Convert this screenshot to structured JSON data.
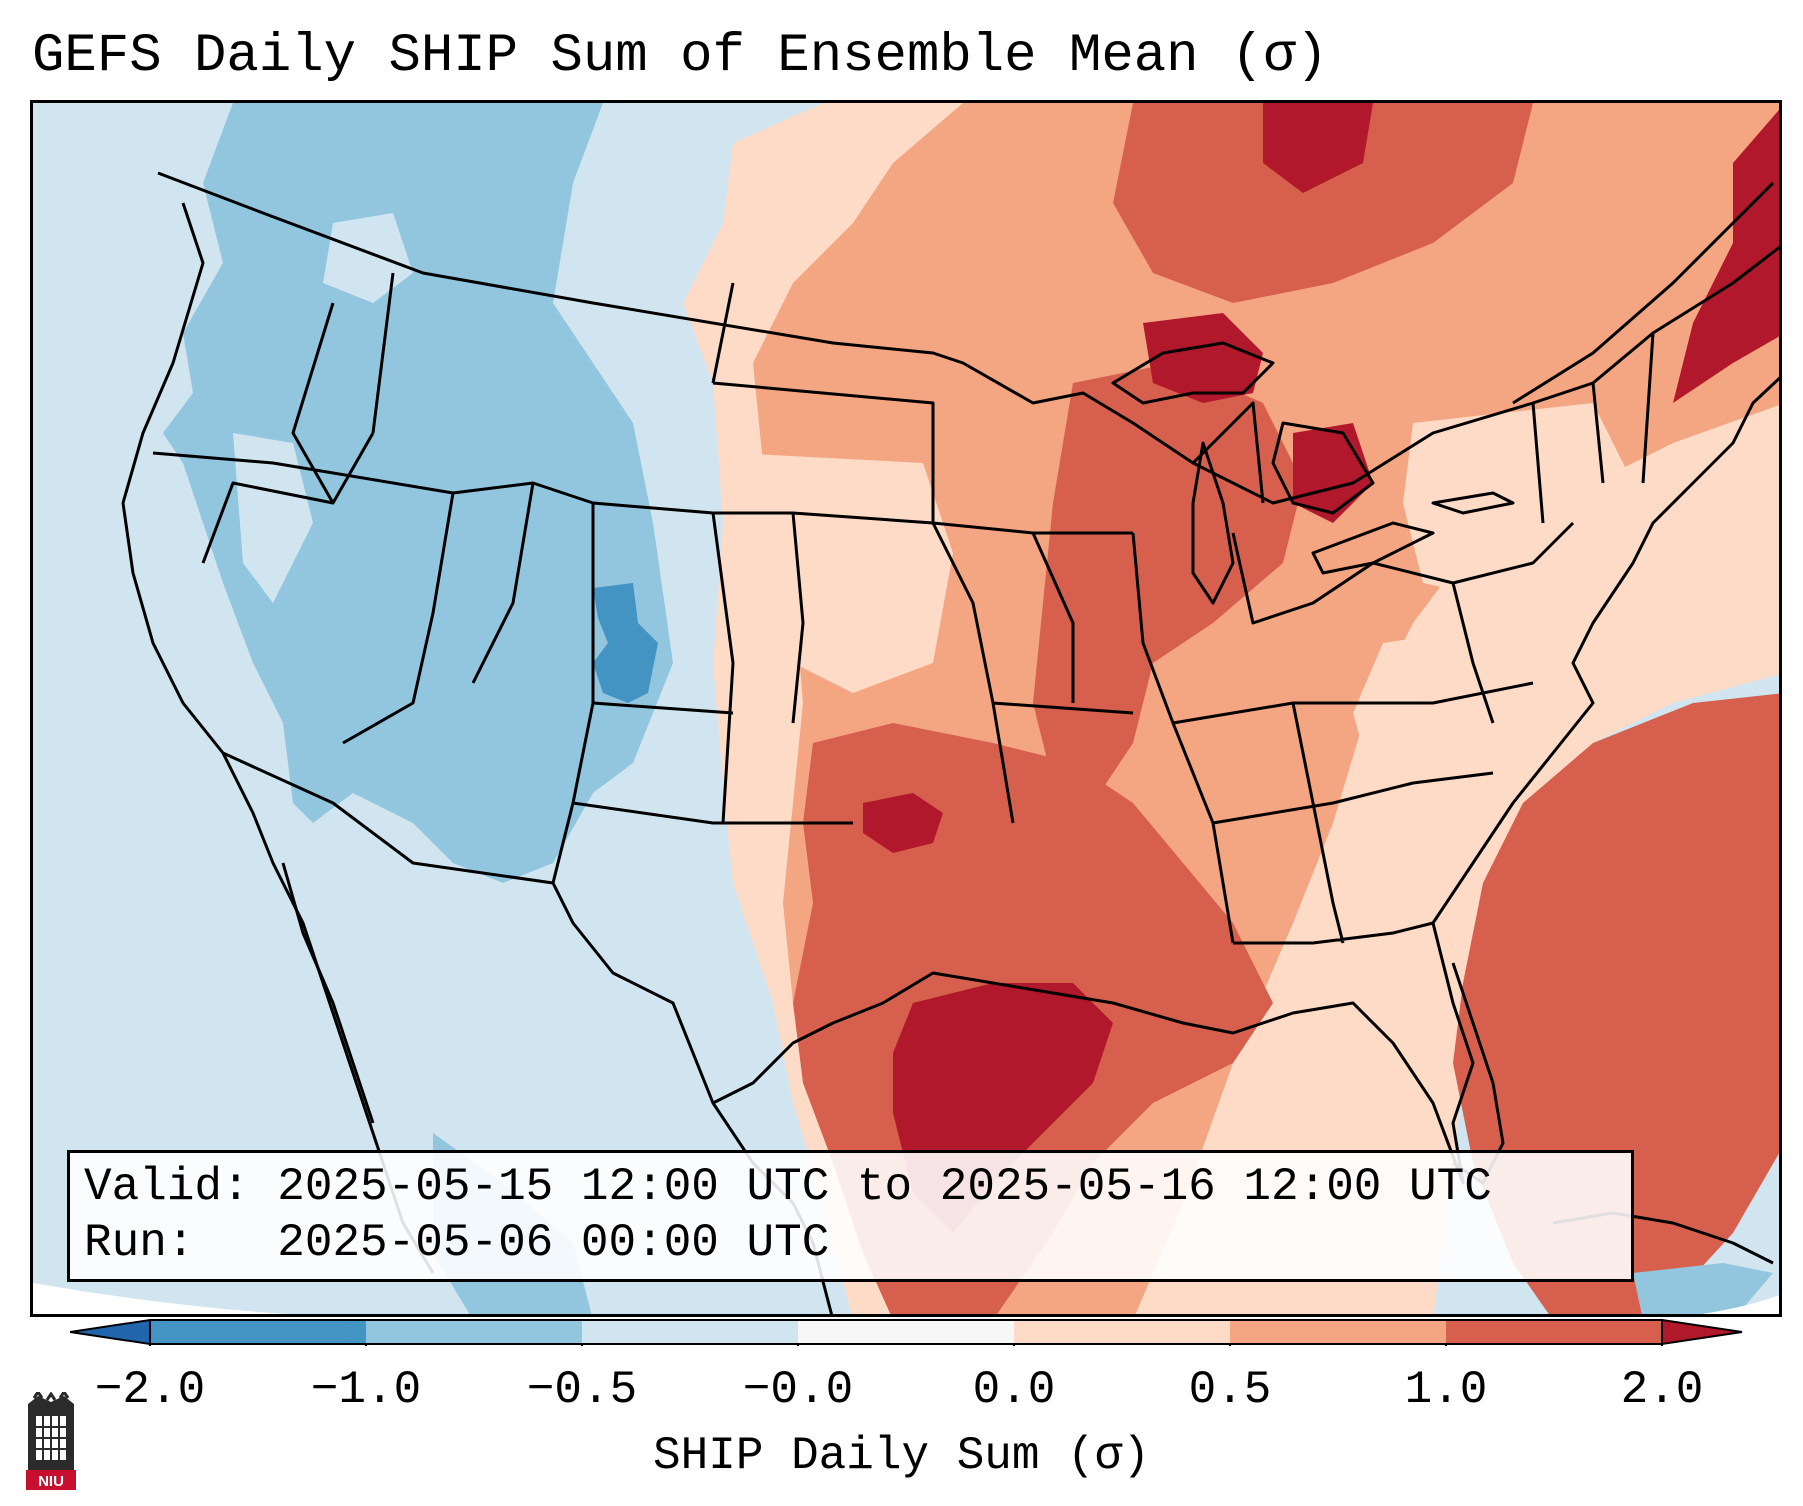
{
  "title": "GEFS Daily SHIP Sum of Ensemble Mean (σ)",
  "info": {
    "valid_line": "Valid: 2025-05-15 12:00 UTC to 2025-05-16 12:00 UTC",
    "run_line": "Run:   2025-05-06 00:00 UTC"
  },
  "colorbar": {
    "label": "SHIP Daily Sum (σ)",
    "ticks": [
      "−2.0",
      "−1.0",
      "−0.5",
      "−0.0",
      "0.0",
      "0.5",
      "1.0",
      "2.0"
    ],
    "colors": {
      "below_min": "#2166ac",
      "b1": "#4393c3",
      "b2": "#92c5de",
      "b3": "#d1e5f0",
      "b4": "#f7f7f7",
      "b5": "#fddbc7",
      "b6": "#f4a582",
      "b7": "#d6604d",
      "above_max": "#b2182b"
    }
  },
  "logo": {
    "text": "NIU",
    "icon": "university-logo-icon"
  }
}
